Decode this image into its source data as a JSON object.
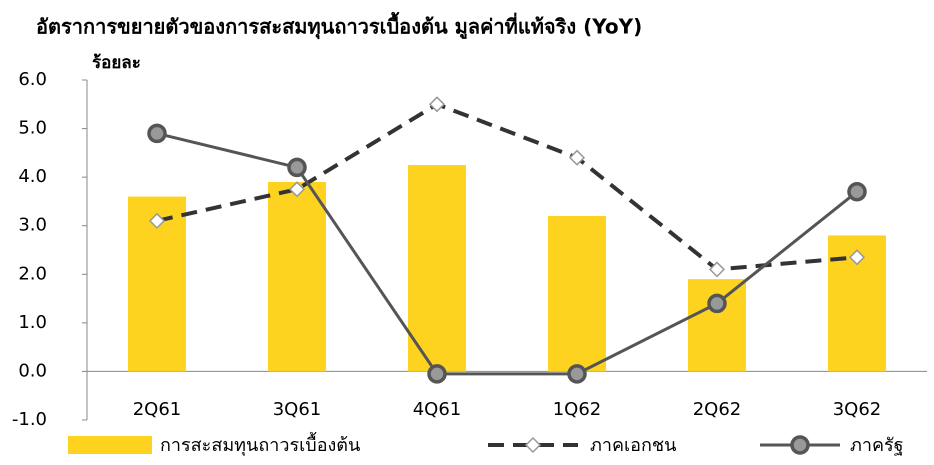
{
  "chart_data": {
    "type": "bar",
    "title": "อัตราการขยายตัวของการสะสมทุนถาวรเบื้องต้น มูลค่าที่แท้จริง (YoY)",
    "y_label": "ร้อยละ",
    "categories": [
      "2Q61",
      "3Q61",
      "4Q61",
      "1Q62",
      "2Q62",
      "3Q62"
    ],
    "series": [
      {
        "name": "การสะสมทุนถาวรเบื้องต้น",
        "type": "bar",
        "color": "#fdd320",
        "values": [
          3.6,
          3.9,
          4.25,
          3.2,
          1.9,
          2.8
        ]
      },
      {
        "name": "ภาคเอกชน",
        "type": "line",
        "style": "dashed",
        "marker": "diamond",
        "color": "#333333",
        "values": [
          3.1,
          3.75,
          5.5,
          4.4,
          2.1,
          2.35
        ]
      },
      {
        "name": "ภาครัฐ",
        "type": "line",
        "style": "solid",
        "marker": "circle",
        "color": "#555555",
        "values": [
          4.9,
          4.2,
          -0.05,
          -0.05,
          1.4,
          3.7
        ]
      }
    ],
    "ylim": [
      -1,
      6
    ],
    "yticks": [
      {
        "value": -1,
        "label": "-1.0"
      },
      {
        "value": 0,
        "label": "0.0"
      },
      {
        "value": 1,
        "label": "1.0"
      },
      {
        "value": 2,
        "label": "2.0"
      },
      {
        "value": 3,
        "label": "3.0"
      },
      {
        "value": 4,
        "label": "4.0"
      },
      {
        "value": 5,
        "label": "5.0"
      },
      {
        "value": 6,
        "label": "6.0"
      }
    ],
    "legend": "bottom",
    "grid": false
  }
}
